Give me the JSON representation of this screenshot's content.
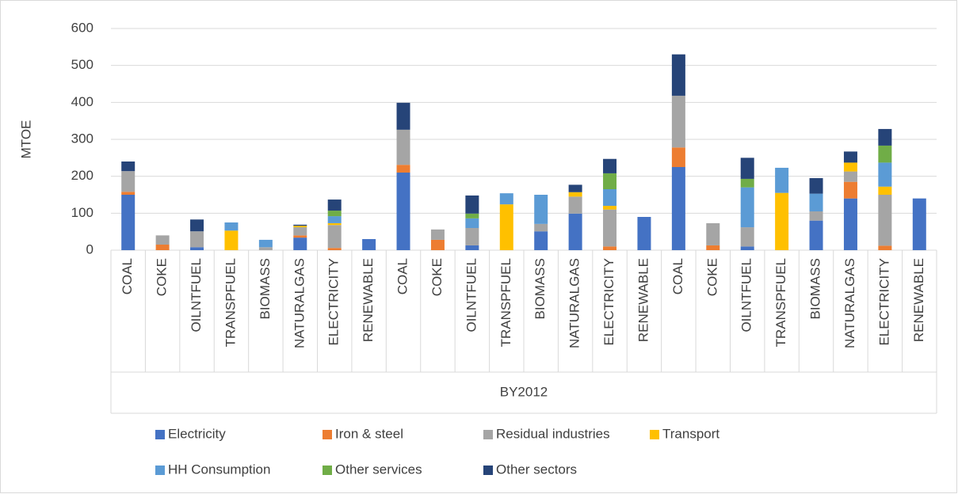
{
  "chart_data": {
    "type": "stacked_bar",
    "y_label": "MTOE",
    "group_label": "BY2012",
    "categories": [
      "COAL",
      "COKE",
      "OILNTFUEL",
      "TRANSPFUEL",
      "BIOMASS",
      "NATURALGAS",
      "ELECTRICITY",
      "RENEWABLE",
      "COAL",
      "COKE",
      "OILNTFUEL",
      "TRANSPFUEL",
      "BIOMASS",
      "NATURALGAS",
      "ELECTRICITY",
      "RENEWABLE",
      "COAL",
      "COKE",
      "OILNTFUEL",
      "TRANSPFUEL",
      "BIOMASS",
      "NATURALGAS",
      "ELECTRICITY",
      "RENEWABLE"
    ],
    "series": [
      {
        "name": "Electricity",
        "color": "#4472c4",
        "values": [
          150,
          0,
          8,
          0,
          0,
          34,
          0,
          30,
          210,
          0,
          13,
          0,
          51,
          99,
          0,
          90,
          225,
          0,
          10,
          0,
          80,
          140,
          0,
          140
        ]
      },
      {
        "name": "Iron & steel",
        "color": "#ed7d31",
        "values": [
          8,
          15,
          0,
          0,
          0,
          6,
          6,
          0,
          21,
          28,
          0,
          0,
          0,
          0,
          10,
          0,
          53,
          13,
          0,
          0,
          0,
          45,
          12,
          0
        ]
      },
      {
        "name": "Residual industries",
        "color": "#a5a5a5",
        "values": [
          56,
          25,
          43,
          0,
          8,
          22,
          62,
          0,
          95,
          28,
          47,
          0,
          20,
          46,
          100,
          0,
          140,
          60,
          52,
          0,
          25,
          28,
          138,
          0
        ]
      },
      {
        "name": "Transport",
        "color": "#ffc000",
        "values": [
          0,
          0,
          0,
          53,
          0,
          4,
          5,
          0,
          0,
          0,
          0,
          124,
          0,
          12,
          10,
          0,
          0,
          0,
          0,
          155,
          0,
          24,
          22,
          0
        ]
      },
      {
        "name": "HH Consumption",
        "color": "#5b9bd5",
        "values": [
          0,
          0,
          0,
          22,
          20,
          0,
          19,
          0,
          0,
          0,
          26,
          30,
          79,
          0,
          45,
          0,
          0,
          0,
          108,
          68,
          48,
          0,
          65,
          0
        ]
      },
      {
        "name": "Other services",
        "color": "#70ad47",
        "values": [
          0,
          0,
          0,
          0,
          0,
          0,
          15,
          0,
          0,
          0,
          13,
          0,
          0,
          0,
          43,
          0,
          0,
          0,
          23,
          0,
          0,
          0,
          46,
          0
        ]
      },
      {
        "name": "Other sectors",
        "color": "#264478",
        "values": [
          26,
          0,
          32,
          0,
          0,
          3,
          30,
          0,
          73,
          0,
          49,
          0,
          0,
          20,
          39,
          0,
          112,
          0,
          57,
          0,
          42,
          30,
          45,
          0
        ]
      }
    ],
    "ylim": [
      0,
      600
    ],
    "yticks": [
      0,
      100,
      200,
      300,
      400,
      500,
      600
    ],
    "grid": true,
    "legend": "bottom"
  }
}
